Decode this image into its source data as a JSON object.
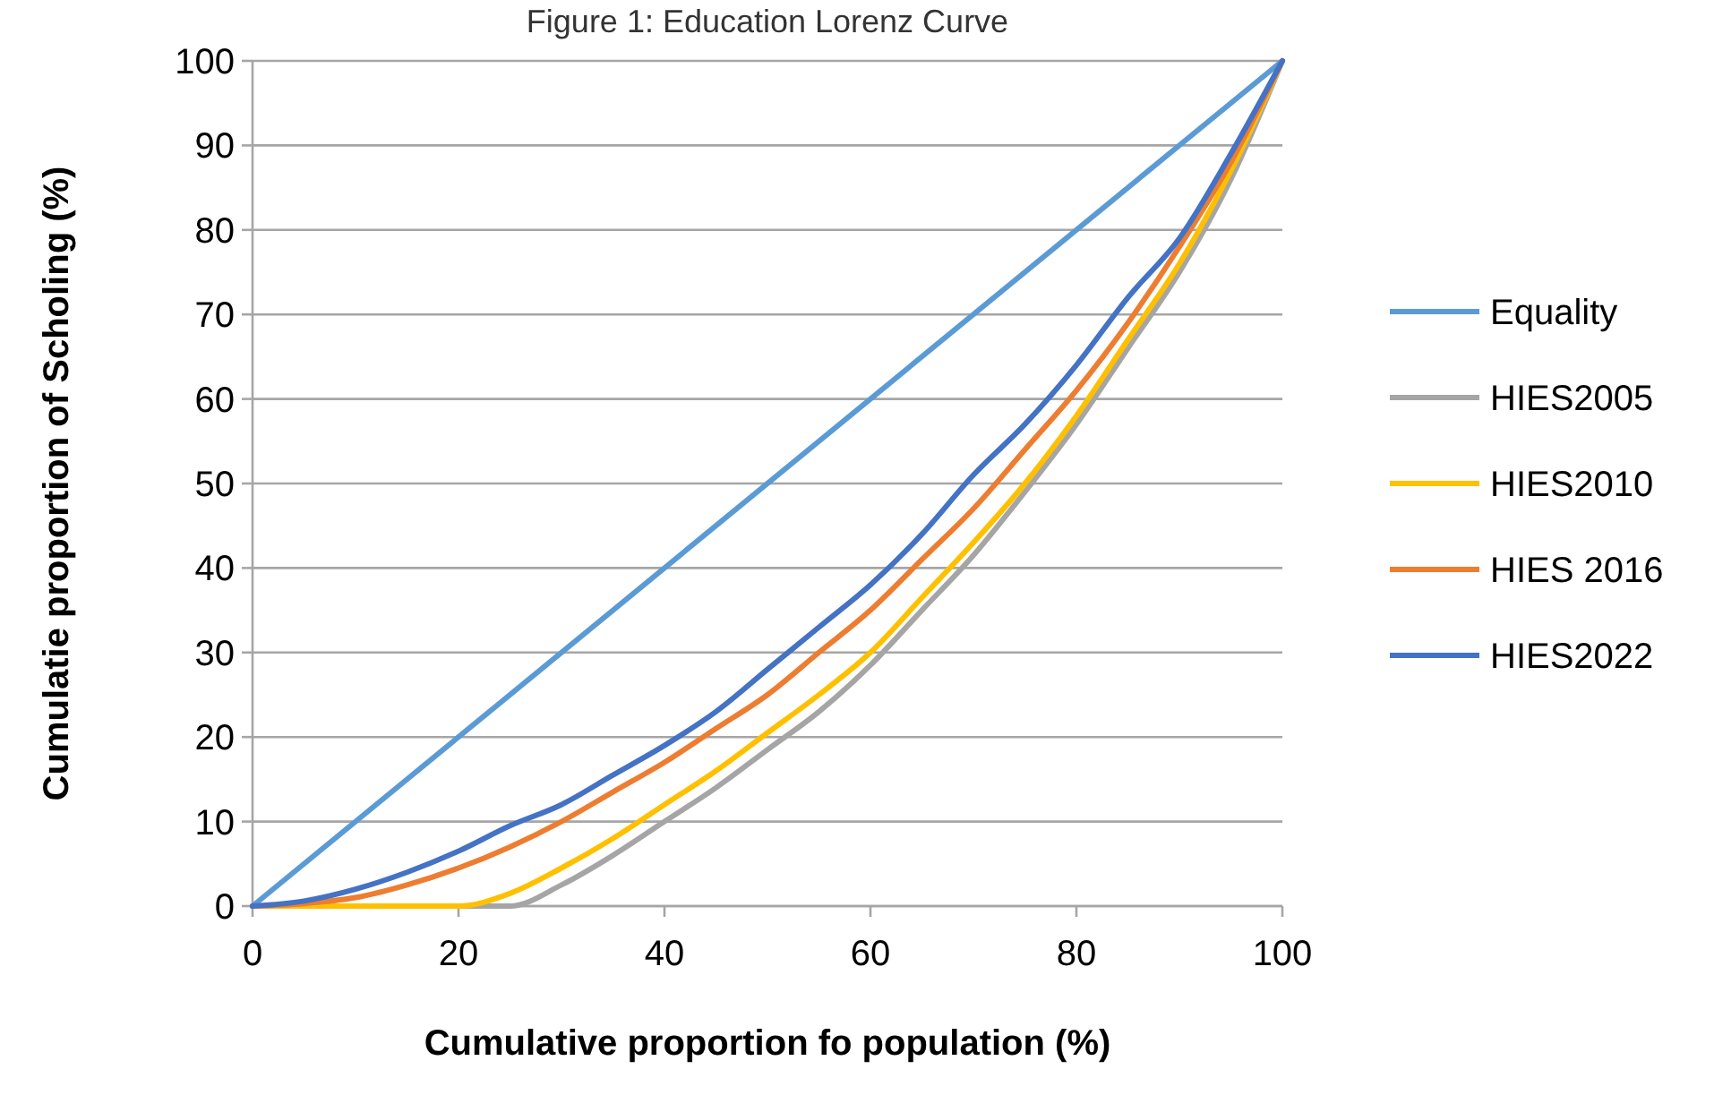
{
  "chart_data": {
    "type": "line",
    "title": "Figure 1: Education Lorenz Curve",
    "xlabel": "Cumulative proportion fo population (%)",
    "ylabel": "Cumulatie proportion of Scholing (%)",
    "x": [
      0,
      5,
      10,
      15,
      20,
      25,
      30,
      35,
      40,
      45,
      50,
      55,
      60,
      65,
      70,
      75,
      80,
      85,
      90,
      95,
      100
    ],
    "series": [
      {
        "name": "Equality",
        "color": "#5b9bd5",
        "x": [
          0,
          100
        ],
        "values": [
          0,
          100
        ]
      },
      {
        "name": "HIES2005",
        "color": "#a5a5a5",
        "values": [
          0,
          0,
          0,
          0,
          0,
          0,
          2.5,
          6,
          10,
          14,
          18.5,
          23,
          28.5,
          35,
          41.5,
          49,
          57,
          66,
          75,
          86,
          100
        ]
      },
      {
        "name": "HIES2010",
        "color": "#ffc000",
        "values": [
          0,
          0,
          0,
          0,
          0,
          1.5,
          4.5,
          8,
          12,
          16,
          20.5,
          25,
          30,
          36.5,
          43,
          50,
          58,
          67,
          76,
          87,
          100
        ]
      },
      {
        "name": "HIES 2016",
        "color": "#ed7d31",
        "values": [
          0,
          0.3,
          1,
          2.5,
          4.5,
          7,
          10,
          13.5,
          17,
          21,
          25,
          30,
          35,
          41,
          47,
          54,
          61,
          69,
          78,
          88,
          100
        ]
      },
      {
        "name": "HIES2022",
        "color": "#4472c4",
        "values": [
          0,
          0.6,
          2,
          4,
          6.5,
          9.5,
          12,
          15.5,
          19,
          23,
          28,
          33,
          38,
          44,
          51,
          57,
          64,
          72,
          79,
          89,
          100
        ]
      }
    ],
    "xlim": [
      0,
      100
    ],
    "xticks": [
      0,
      20,
      40,
      60,
      80,
      100
    ],
    "ylim": [
      0,
      100
    ],
    "yticks": [
      0,
      10,
      20,
      30,
      40,
      50,
      60,
      70,
      80,
      90,
      100
    ],
    "grid": "y",
    "legend": "right",
    "marker": "none",
    "line_style": "solid"
  }
}
